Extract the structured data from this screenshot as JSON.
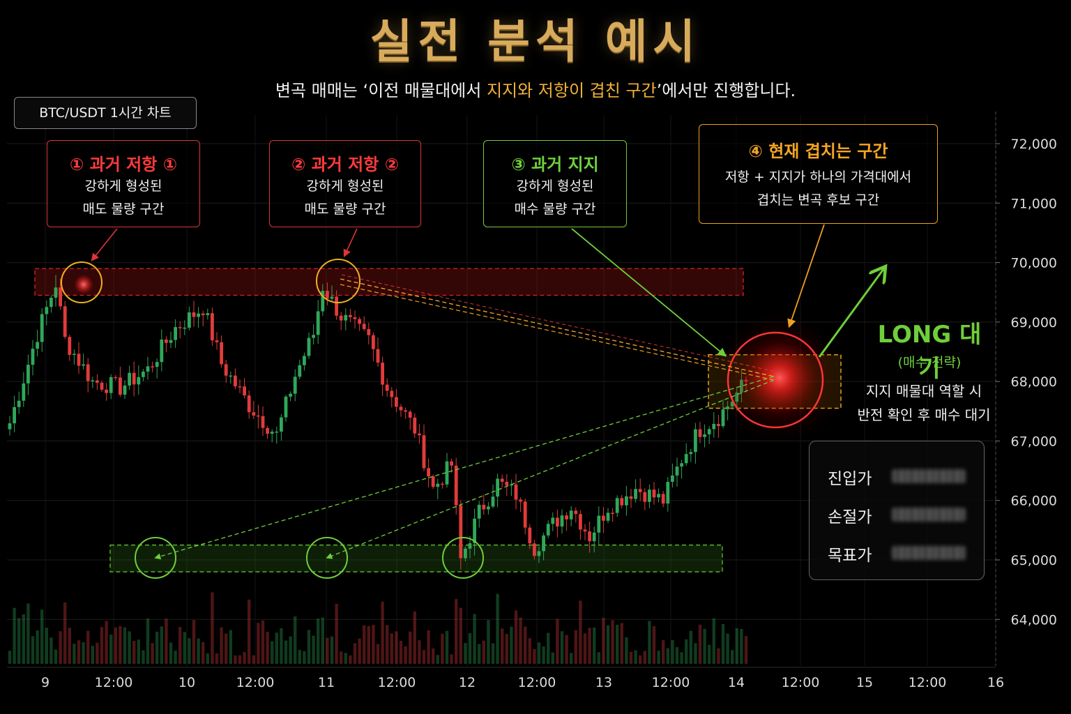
{
  "title": "실전 분석 예시",
  "subtitle": {
    "before": "변곡 매매는 ‘이전 매물대에서 ",
    "highlight": "지지와 저항이 겹친 구간",
    "after": "’에서만 진행합니다."
  },
  "chart_label": "BTC/USDT  1시간 차트",
  "callouts": {
    "resistance1": {
      "title": "① 과거 저항 ①",
      "line1": "강하게 형성된",
      "line2": "매도 물량 구간"
    },
    "resistance2": {
      "title": "② 과거 저항 ②",
      "line1": "강하게 형성된",
      "line2": "매도 물량 구간"
    },
    "support": {
      "title": "③ 과거 지지",
      "line1": "강하게 형성된",
      "line2": "매수 물량 구간"
    },
    "current": {
      "title": "④ 현재 겹치는 구간",
      "line1": "저항 + 지지가 하나의 가격대에서",
      "line2": "겹치는 변곡 후보 구간"
    }
  },
  "long": {
    "title": "LONG 대기",
    "sub": "(매수 전략)",
    "line1": "지지 매물대 역할 시",
    "line2": "반전 확인 후 매수 대기"
  },
  "trade_panel": {
    "entry": "진입가",
    "stop": "손절가",
    "target": "목표가"
  },
  "colors": {
    "bull": "#2fa85a",
    "bear": "#e23b3b",
    "gold": "#d8ab5c",
    "orange": "#f5a623",
    "green": "#6fcf3a",
    "red": "#ff3b3b"
  },
  "chart_data": {
    "type": "candlestick",
    "title": "BTC/USDT 1시간 차트",
    "x_ticks": [
      "9",
      "12:00",
      "10",
      "12:00",
      "11",
      "12:00",
      "12",
      "12:00",
      "13",
      "12:00",
      "14",
      "12:00",
      "15",
      "12:00",
      "16"
    ],
    "y_ticks": [
      "64,000",
      "65,000",
      "66,000",
      "67,000",
      "68,000",
      "69,000",
      "70,000",
      "71,000",
      "72,000"
    ],
    "ylim": [
      63500,
      72500
    ],
    "resistance_zone": [
      69450,
      69900
    ],
    "support_zone": [
      64800,
      65250
    ],
    "current_zone": [
      67550,
      68450
    ],
    "price_path": [
      [
        0,
        67300
      ],
      [
        6,
        68800
      ],
      [
        10,
        69650
      ],
      [
        12,
        68700
      ],
      [
        18,
        68000
      ],
      [
        24,
        67900
      ],
      [
        30,
        68200
      ],
      [
        36,
        68900
      ],
      [
        42,
        69250
      ],
      [
        46,
        68300
      ],
      [
        52,
        67600
      ],
      [
        58,
        67100
      ],
      [
        62,
        68100
      ],
      [
        66,
        68800
      ],
      [
        68,
        69600
      ],
      [
        72,
        69100
      ],
      [
        78,
        68700
      ],
      [
        82,
        67900
      ],
      [
        88,
        67200
      ],
      [
        92,
        66200
      ],
      [
        96,
        66600
      ],
      [
        98,
        65000
      ],
      [
        102,
        65800
      ],
      [
        106,
        66300
      ],
      [
        110,
        66100
      ],
      [
        114,
        65200
      ],
      [
        118,
        65600
      ],
      [
        122,
        65900
      ],
      [
        126,
        65400
      ],
      [
        130,
        65900
      ],
      [
        136,
        66200
      ],
      [
        142,
        66000
      ],
      [
        146,
        66700
      ],
      [
        150,
        67200
      ],
      [
        154,
        67400
      ],
      [
        160,
        68000
      ]
    ]
  }
}
